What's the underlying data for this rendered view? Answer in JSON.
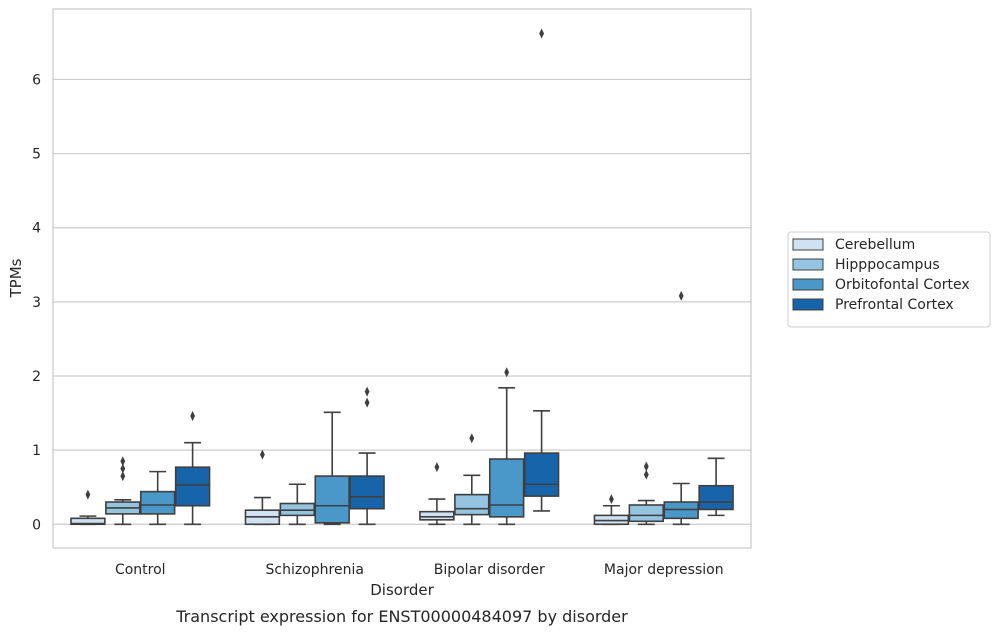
{
  "caption": "Transcript expression for ENST00000484097 by disorder",
  "chart_data": {
    "type": "box",
    "xlabel": "Disorder",
    "ylabel": "TPMs",
    "ylim": [
      -0.32,
      6.95
    ],
    "yticks": [
      0,
      1,
      2,
      3,
      4,
      5,
      6
    ],
    "grid": "horizontal",
    "legend_position": "right",
    "categories": [
      "Control",
      "Schizophrenia",
      "Bipolar disorder",
      "Major depression"
    ],
    "series": [
      {
        "name": "Cerebellum",
        "color": "#d0e1f2",
        "boxes": [
          {
            "whislo": 0.0,
            "q1": 0.0,
            "med": 0.01,
            "q3": 0.08,
            "whishi": 0.11,
            "fliers": [
              0.4
            ]
          },
          {
            "whislo": 0.0,
            "q1": 0.0,
            "med": 0.1,
            "q3": 0.19,
            "whishi": 0.36,
            "fliers": [
              0.94
            ]
          },
          {
            "whislo": 0.0,
            "q1": 0.06,
            "med": 0.1,
            "q3": 0.17,
            "whishi": 0.34,
            "fliers": [
              0.77
            ]
          },
          {
            "whislo": 0.0,
            "q1": 0.0,
            "med": 0.05,
            "q3": 0.12,
            "whishi": 0.25,
            "fliers": [
              0.34
            ]
          }
        ]
      },
      {
        "name": "Hipppocampus",
        "color": "#94c4df",
        "boxes": [
          {
            "whislo": 0.0,
            "q1": 0.14,
            "med": 0.22,
            "q3": 0.3,
            "whishi": 0.33,
            "fliers": [
              0.65,
              0.75,
              0.85
            ]
          },
          {
            "whislo": 0.0,
            "q1": 0.12,
            "med": 0.19,
            "q3": 0.28,
            "whishi": 0.54,
            "fliers": []
          },
          {
            "whislo": 0.0,
            "q1": 0.13,
            "med": 0.21,
            "q3": 0.4,
            "whishi": 0.66,
            "fliers": [
              1.16
            ]
          },
          {
            "whislo": 0.0,
            "q1": 0.04,
            "med": 0.12,
            "q3": 0.26,
            "whishi": 0.32,
            "fliers": [
              0.67,
              0.78
            ]
          }
        ]
      },
      {
        "name": "Orbitofontal Cortex",
        "color": "#4a98c9",
        "boxes": [
          {
            "whislo": 0.0,
            "q1": 0.14,
            "med": 0.26,
            "q3": 0.44,
            "whishi": 0.71,
            "fliers": []
          },
          {
            "whislo": 0.0,
            "q1": 0.02,
            "med": 0.25,
            "q3": 0.65,
            "whishi": 1.51,
            "fliers": []
          },
          {
            "whislo": 0.0,
            "q1": 0.1,
            "med": 0.26,
            "q3": 0.88,
            "whishi": 1.84,
            "fliers": [
              2.05
            ]
          },
          {
            "whislo": 0.0,
            "q1": 0.08,
            "med": 0.2,
            "q3": 0.3,
            "whishi": 0.55,
            "fliers": [
              3.08
            ]
          }
        ]
      },
      {
        "name": "Prefrontal Cortex",
        "color": "#1764ab",
        "boxes": [
          {
            "whislo": 0.0,
            "q1": 0.25,
            "med": 0.53,
            "q3": 0.77,
            "whishi": 1.1,
            "fliers": [
              1.46
            ]
          },
          {
            "whislo": 0.0,
            "q1": 0.21,
            "med": 0.37,
            "q3": 0.65,
            "whishi": 0.96,
            "fliers": [
              1.64,
              1.79
            ]
          },
          {
            "whislo": 0.18,
            "q1": 0.38,
            "med": 0.54,
            "q3": 0.96,
            "whishi": 1.53,
            "fliers": [
              6.62
            ]
          },
          {
            "whislo": 0.12,
            "q1": 0.2,
            "med": 0.3,
            "q3": 0.52,
            "whishi": 0.89,
            "fliers": []
          }
        ]
      }
    ]
  }
}
